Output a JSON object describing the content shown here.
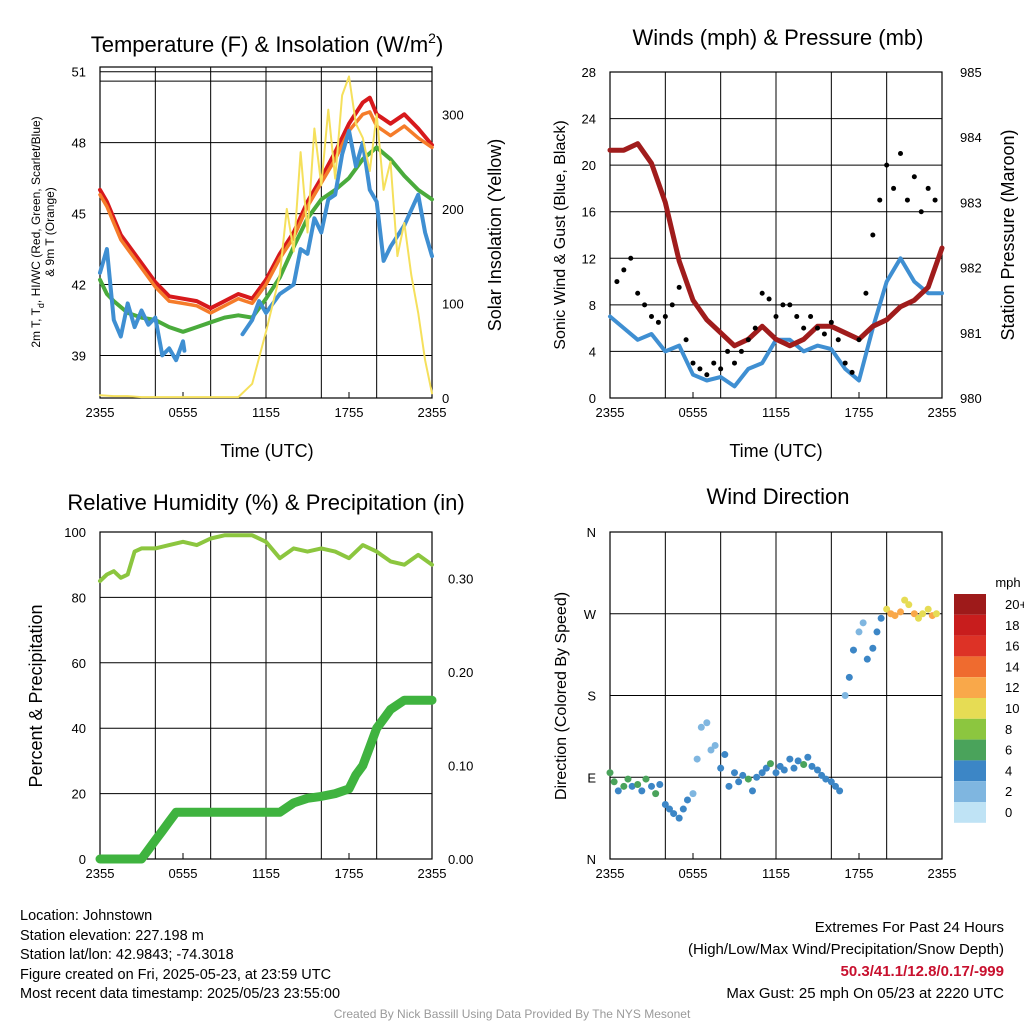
{
  "colors": {
    "red": "#d7191c",
    "orange": "#f57c2a",
    "green": "#4aab3c",
    "blue": "#3f8fd2",
    "yellow": "#f5e05c",
    "maroon": "#a01c1c",
    "black": "#000000",
    "rh": "#8cc63f",
    "precip": "#3fb33f"
  },
  "chart_data": [
    {
      "type": "line",
      "title": "Temperature (F) & Insolation (W/m",
      "title_superscript": "2",
      "title_close": ")",
      "xlabel": "Time (UTC)",
      "x_ticks": [
        "2355",
        "0555",
        "1155",
        "1755",
        "2355"
      ],
      "ylabel": "2m T, T",
      "ylabel_subscript": "d",
      "ylabel_rest": ", HI/WC (Red, Green, Scarlet/Blue)",
      "ylabel_line2": "& 9m T (Orange)",
      "y_ticks": [
        "51",
        "48",
        "45",
        "42",
        "39"
      ],
      "ylim": [
        37.2,
        51.2
      ],
      "y2label": "Solar Insolation (Yellow)",
      "y2_ticks": [
        "300",
        "200",
        "100",
        "0"
      ],
      "y2lim": [
        0,
        350
      ],
      "xlim": [
        0,
        24
      ],
      "series": [
        {
          "color_key": "red",
          "x": [
            0,
            0.5,
            1,
            1.5,
            2,
            3,
            4,
            5,
            6,
            7,
            8,
            9,
            10,
            10.5,
            11,
            12,
            13,
            14,
            15,
            16,
            17,
            18,
            19,
            19.5,
            20,
            21,
            22,
            23,
            24
          ],
          "values": [
            46,
            45.5,
            44.8,
            44.1,
            43.7,
            42.9,
            42.1,
            41.5,
            41.4,
            41.3,
            41,
            41.3,
            41.6,
            41.5,
            41.4,
            42.2,
            43.3,
            44.2,
            45.5,
            46.5,
            47.6,
            48.8,
            49.7,
            49.9,
            49.2,
            48.8,
            49.2,
            48.6,
            47.9
          ]
        },
        {
          "color_key": "orange",
          "x": [
            0,
            0.5,
            1,
            1.5,
            2,
            3,
            4,
            5,
            6,
            7,
            8,
            9,
            10,
            10.5,
            11,
            12,
            13,
            14,
            15,
            16,
            17,
            18,
            19,
            19.5,
            20,
            21,
            22,
            23,
            24
          ],
          "values": [
            45.8,
            45.3,
            44.6,
            43.9,
            43.5,
            42.7,
            41.9,
            41.3,
            41.2,
            41.1,
            40.8,
            41.1,
            41.4,
            41.3,
            41.2,
            42,
            43.1,
            44,
            45.3,
            46.3,
            47.3,
            48.5,
            49.2,
            49.3,
            48.7,
            48.3,
            48.7,
            48.2,
            47.8
          ]
        },
        {
          "color_key": "green",
          "x": [
            0,
            0.5,
            1,
            2,
            3,
            4,
            5,
            6,
            7,
            8,
            9,
            10,
            11,
            12,
            13,
            14,
            15,
            16,
            17,
            18,
            19,
            20,
            21,
            22,
            23,
            24
          ],
          "values": [
            42.2,
            41.6,
            41.3,
            40.8,
            40.6,
            40.5,
            40.2,
            40,
            40.2,
            40.4,
            40.6,
            40.7,
            40.6,
            41.4,
            42.3,
            43.6,
            44.8,
            45.6,
            46,
            46.5,
            47.3,
            47.8,
            47.3,
            46.6,
            46,
            45.6
          ]
        },
        {
          "color_key": "blue",
          "x": [
            0,
            0.5,
            1,
            1.5,
            2,
            2.5,
            3,
            3.5,
            4,
            4.5,
            5,
            5.5,
            6,
            6.1
          ],
          "values": [
            42.5,
            43.5,
            40.5,
            39.8,
            41.2,
            40.2,
            40.9,
            40.3,
            40.6,
            39,
            39.3,
            38.8,
            39.6,
            39.2
          ]
        },
        {
          "color_key": "blue",
          "x": [
            10.3,
            11,
            11.5,
            12,
            13,
            14,
            14.5,
            15,
            15.5,
            16,
            16.5,
            17,
            17.5,
            18,
            18.5,
            19,
            19.5,
            20,
            20.5,
            21,
            22,
            23,
            23.5,
            24
          ],
          "values": [
            39.9,
            40.5,
            41.3,
            40.8,
            41.6,
            42,
            43.5,
            43.3,
            44.8,
            44.2,
            45.6,
            45.8,
            47.5,
            48.5,
            47,
            48,
            46,
            45.5,
            43,
            43.6,
            44.5,
            45.8,
            44.2,
            43.2
          ]
        },
        {
          "color_key": "yellow",
          "axis": "y2",
          "x": [
            0,
            1,
            2,
            3,
            4,
            5,
            6,
            7,
            8,
            9,
            10,
            11,
            12,
            13,
            13.5,
            14,
            14.5,
            15,
            15.5,
            16,
            16.5,
            17,
            17.5,
            18,
            18.5,
            19,
            19.5,
            20,
            20.5,
            21,
            21.5,
            22,
            22.5,
            23,
            23.5,
            24
          ],
          "values": [
            3,
            2,
            2,
            1,
            1,
            1,
            1,
            1,
            1,
            1,
            1,
            15,
            70,
            130,
            200,
            155,
            260,
            175,
            285,
            225,
            305,
            232,
            320,
            340,
            290,
            275,
            240,
            300,
            220,
            250,
            150,
            185,
            130,
            90,
            40,
            5
          ]
        }
      ]
    },
    {
      "type": "line",
      "title": "Winds (mph) & Pressure (mb)",
      "xlabel": "Time (UTC)",
      "x_ticks": [
        "2355",
        "0555",
        "1155",
        "1755",
        "2355"
      ],
      "ylabel": "Sonic Wind & Gust (Blue, Black)",
      "y_ticks": [
        "0",
        "4",
        "8",
        "12",
        "16",
        "20",
        "24",
        "28"
      ],
      "ylim": [
        0,
        28
      ],
      "y2label": "Station Pressure (Maroon)",
      "y2_ticks": [
        "980",
        "981",
        "982",
        "983",
        "984",
        "985"
      ],
      "y2lim": [
        980,
        985
      ],
      "xlim": [
        0,
        24
      ],
      "series": [
        {
          "color_key": "blue",
          "x": [
            0,
            1,
            2,
            3,
            4,
            5,
            6,
            7,
            8,
            9,
            10,
            11,
            12,
            13,
            14,
            15,
            16,
            17,
            18,
            19,
            20,
            21,
            22,
            23,
            24
          ],
          "values": [
            7,
            6,
            5,
            5.5,
            4,
            4.5,
            2,
            1.5,
            1.8,
            1,
            2.5,
            3,
            5,
            5,
            4,
            4.5,
            4.2,
            2.5,
            1.5,
            6,
            10,
            12,
            10,
            9,
            9
          ]
        },
        {
          "color_key": "maroon",
          "axis": "y2",
          "x": [
            0,
            1,
            2,
            3,
            4,
            5,
            6,
            7,
            8,
            9,
            10,
            11,
            12,
            13,
            14,
            15,
            16,
            17,
            18,
            19,
            20,
            21,
            22,
            23,
            24
          ],
          "values": [
            983.8,
            983.8,
            983.9,
            983.6,
            983,
            982.1,
            981.5,
            981.2,
            981,
            980.8,
            980.9,
            981.1,
            980.9,
            980.8,
            980.9,
            981.1,
            981.1,
            981,
            980.9,
            981.1,
            981.2,
            981.4,
            981.5,
            981.7,
            982.3
          ]
        },
        {
          "color_key": "black",
          "kind": "points",
          "x": [
            0.5,
            1,
            1.5,
            2,
            2.5,
            3,
            3.5,
            4,
            4.5,
            5,
            5.5,
            6,
            6.5,
            7,
            7.5,
            8,
            8.5,
            9,
            9.5,
            10,
            10.5,
            11,
            11.5,
            12,
            12.5,
            13,
            13.5,
            14,
            14.5,
            15,
            15.5,
            16,
            16.5,
            17,
            17.5,
            18,
            18.5,
            19,
            19.5,
            20,
            20.5,
            21,
            21.5,
            22,
            22.5,
            23,
            23.5
          ],
          "values": [
            10,
            11,
            12,
            9,
            8,
            7,
            6.5,
            7,
            8,
            9.5,
            5,
            3,
            2.5,
            2,
            3,
            2.5,
            4,
            3,
            4,
            5,
            6,
            9,
            8.5,
            7,
            8,
            8,
            7,
            6,
            7,
            6,
            5.5,
            6.5,
            5,
            3,
            2.2,
            5,
            9,
            14,
            17,
            20,
            18,
            21,
            17,
            19,
            16,
            18,
            17
          ]
        }
      ]
    },
    {
      "type": "line",
      "title": "Relative Humidity (%) & Precipitation (in)",
      "x_ticks": [
        "2355",
        "0555",
        "1155",
        "1755",
        "2355"
      ],
      "ylabel": "Percent & Precipitation",
      "y_ticks": [
        "100",
        "80",
        "60",
        "40",
        "20",
        "0"
      ],
      "ylim": [
        0,
        100
      ],
      "y2_ticks": [
        "0.30",
        "0.20",
        "0.10",
        "0.00"
      ],
      "y2lim": [
        0,
        0.35
      ],
      "xlim": [
        0,
        24
      ],
      "series": [
        {
          "color_key": "rh",
          "x": [
            0,
            0.5,
            1,
            1.5,
            2,
            2.5,
            3,
            4,
            5,
            6,
            7,
            8,
            9,
            10,
            11,
            12,
            13,
            14,
            15,
            16,
            17,
            18,
            19,
            20,
            21,
            22,
            23,
            24
          ],
          "values": [
            85,
            87,
            88,
            86,
            87,
            94,
            95,
            95,
            96,
            97,
            96,
            98,
            99,
            99,
            99,
            97,
            92,
            95,
            94,
            95,
            94,
            92,
            96,
            94,
            91,
            90,
            93,
            90
          ]
        },
        {
          "color_key": "precip",
          "axis": "y2",
          "x": [
            0,
            1,
            2,
            3,
            3.5,
            4,
            4.5,
            5,
            5.5,
            6,
            7,
            8,
            9,
            10,
            11,
            12,
            13,
            14,
            15,
            16,
            17,
            18,
            18.5,
            19,
            19.5,
            20,
            20.5,
            21,
            22,
            23,
            24
          ],
          "values": [
            0,
            0,
            0,
            0,
            0.01,
            0.02,
            0.03,
            0.04,
            0.05,
            0.05,
            0.05,
            0.05,
            0.05,
            0.05,
            0.05,
            0.05,
            0.05,
            0.06,
            0.065,
            0.067,
            0.07,
            0.075,
            0.09,
            0.1,
            0.12,
            0.14,
            0.15,
            0.16,
            0.17,
            0.17,
            0.17
          ]
        }
      ]
    },
    {
      "type": "scatter",
      "title": "Wind Direction",
      "x_ticks": [
        "2355",
        "0555",
        "1155",
        "1755",
        "2355"
      ],
      "ylabel": "Direction (Colored By Speed)",
      "y_ticks": [
        "N",
        "W",
        "S",
        "E",
        "N"
      ],
      "ylim": [
        0,
        360
      ],
      "xlim": [
        0,
        24
      ],
      "legend_title": "mph",
      "legend_labels": [
        "20+",
        "18",
        "16",
        "14",
        "12",
        "10",
        "8",
        "6",
        "4",
        "2",
        "0"
      ],
      "legend_colors": [
        "#9e1a1a",
        "#c81d1d",
        "#dd3226",
        "#ef6b2f",
        "#f9a84a",
        "#e6dc54",
        "#8cc63f",
        "#4aa35b",
        "#3c86c6",
        "#7fb6e0",
        "#bfe3f5"
      ],
      "legend_placement": "right",
      "points": {
        "x": [
          0,
          0.3,
          0.6,
          1,
          1.3,
          1.6,
          2,
          2.3,
          2.6,
          3,
          3.3,
          3.6,
          4,
          4.3,
          4.6,
          5,
          5.3,
          5.6,
          6,
          6.3,
          6.6,
          7,
          7.3,
          7.6,
          8,
          8.3,
          8.6,
          9,
          9.3,
          9.6,
          10,
          10.3,
          10.6,
          11,
          11.3,
          11.6,
          12,
          12.3,
          12.6,
          13,
          13.3,
          13.6,
          14,
          14.3,
          14.6,
          15,
          15.3,
          15.6,
          16,
          16.3,
          16.6,
          17,
          17.3,
          17.6,
          18,
          18.3,
          18.6,
          19,
          19.3,
          19.6,
          20,
          20.3,
          20.6,
          21,
          21.3,
          21.6,
          22,
          22.3,
          22.6,
          23,
          23.3,
          23.6
        ],
        "values": [
          95,
          85,
          75,
          80,
          88,
          80,
          82,
          75,
          88,
          80,
          72,
          82,
          60,
          55,
          50,
          45,
          55,
          65,
          72,
          110,
          145,
          150,
          120,
          125,
          100,
          115,
          80,
          95,
          85,
          92,
          88,
          75,
          90,
          95,
          100,
          105,
          95,
          102,
          98,
          110,
          100,
          108,
          104,
          112,
          102,
          98,
          92,
          88,
          85,
          80,
          75,
          180,
          200,
          230,
          250,
          260,
          220,
          232,
          250,
          265,
          275,
          270,
          268,
          272,
          285,
          280,
          270,
          265,
          270,
          275,
          268,
          270
        ],
        "speeds": [
          6,
          5,
          4,
          6,
          5,
          4,
          5,
          3,
          6,
          4,
          5,
          3,
          4,
          4,
          3,
          3,
          4,
          3,
          2,
          1,
          2,
          1,
          1,
          2,
          3,
          4,
          4,
          3,
          4,
          3,
          6,
          4,
          3,
          4,
          4,
          5,
          4,
          4,
          3,
          4,
          4,
          3,
          5,
          4,
          3,
          4,
          4,
          4,
          3,
          3,
          4,
          2,
          3,
          3,
          2,
          1,
          4,
          4,
          3,
          4,
          10,
          11,
          12,
          11,
          10,
          9,
          11,
          10,
          9,
          10,
          11,
          10
        ]
      }
    }
  ],
  "info": {
    "location": "Location: Johnstown",
    "elevation": "Station elevation: 227.198 m",
    "latlon": "Station lat/lon: 42.9843; -74.3018",
    "created": "Figure created on Fri, 2025-05-23, at 23:59 UTC",
    "recent": "Most recent data timestamp: 2025/05/23 23:55:00"
  },
  "extremes": {
    "title": "Extremes For Past 24 Hours",
    "subtitle": "(High/Low/Max Wind/Precipitation/Snow Depth)",
    "values": "50.3/41.1/12.8/0.17/-999",
    "gust": "Max Gust: 25 mph On 05/23 at 2220 UTC"
  },
  "credit": "Created By Nick Bassill Using Data Provided By The NYS Mesonet"
}
